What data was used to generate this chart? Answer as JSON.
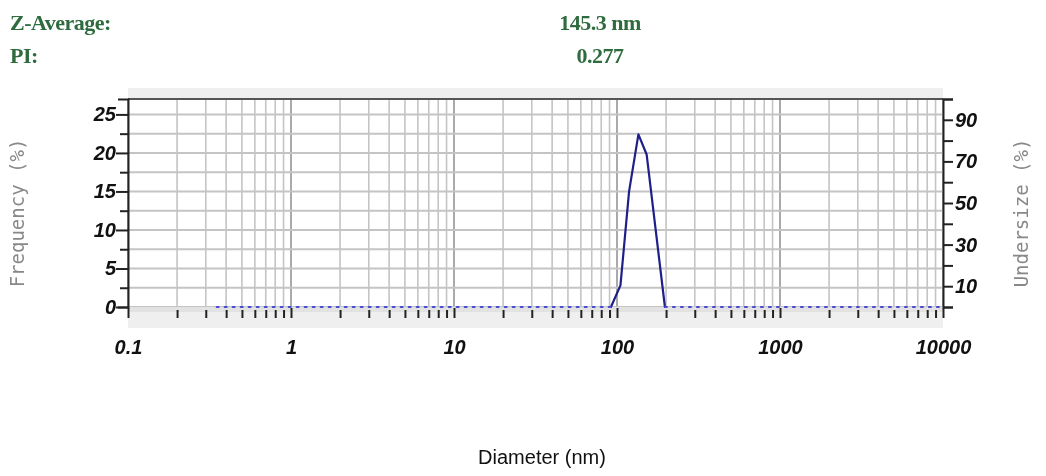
{
  "chart_data": {
    "type": "line",
    "xlabel": "Diameter (nm)",
    "ylabel": "Frequency (%)",
    "y2label": "Undersize (%)",
    "annotations": [
      "Z-Average:",
      "145.3 nm",
      "PI:",
      "0.277"
    ],
    "log": "x",
    "grid": true,
    "marker": "none",
    "xlim": [
      0.1,
      10000
    ],
    "xticks": [
      0.1,
      {
        "value": 0.2,
        "label": null
      },
      {
        "value": 0.3,
        "label": null
      },
      {
        "value": 0.4,
        "label": null
      },
      {
        "value": 0.5,
        "label": null
      },
      {
        "value": 0.6,
        "label": null
      },
      {
        "value": 0.7,
        "label": null
      },
      {
        "value": 0.8,
        "label": null
      },
      {
        "value": 0.9,
        "label": null
      },
      1,
      {
        "value": 2,
        "label": null
      },
      {
        "value": 3,
        "label": null
      },
      {
        "value": 4,
        "label": null
      },
      {
        "value": 5,
        "label": null
      },
      {
        "value": 6,
        "label": null
      },
      {
        "value": 7,
        "label": null
      },
      {
        "value": 8,
        "label": null
      },
      {
        "value": 9,
        "label": null
      },
      10,
      {
        "value": 20,
        "label": null
      },
      {
        "value": 30,
        "label": null
      },
      {
        "value": 40,
        "label": null
      },
      {
        "value": 50,
        "label": null
      },
      {
        "value": 60,
        "label": null
      },
      {
        "value": 70,
        "label": null
      },
      {
        "value": 80,
        "label": null
      },
      {
        "value": 90,
        "label": null
      },
      100,
      {
        "value": 200,
        "label": null
      },
      {
        "value": 300,
        "label": null
      },
      {
        "value": 400,
        "label": null
      },
      {
        "value": 500,
        "label": null
      },
      {
        "value": 600,
        "label": null
      },
      {
        "value": 700,
        "label": null
      },
      {
        "value": 800,
        "label": null
      },
      {
        "value": 900,
        "label": null
      },
      1000,
      {
        "value": 2000,
        "label": null
      },
      {
        "value": 3000,
        "label": null
      },
      {
        "value": 4000,
        "label": null
      },
      {
        "value": 5000,
        "label": null
      },
      {
        "value": 6000,
        "label": null
      },
      {
        "value": 7000,
        "label": null
      },
      {
        "value": 8000,
        "label": null
      },
      {
        "value": 9000,
        "label": null
      },
      10000
    ],
    "ylim": [
      0,
      27
    ],
    "yticks": [
      0,
      {
        "value": 2.5,
        "label": null
      },
      5,
      {
        "value": 7.5,
        "label": null
      },
      10,
      {
        "value": 12.5,
        "label": null
      },
      15,
      {
        "value": 17.5,
        "label": null
      },
      20,
      {
        "value": 22.5,
        "label": null
      },
      25
    ],
    "y2lim": [
      0,
      100
    ],
    "y2ticks": [
      {
        "value": 0,
        "label": null
      },
      10,
      {
        "value": 20,
        "label": null
      },
      30,
      {
        "value": 40,
        "label": null
      },
      50,
      {
        "value": 60,
        "label": null
      },
      70,
      {
        "value": 80,
        "label": null
      },
      90,
      {
        "value": 100,
        "label": null
      }
    ],
    "series": [
      {
        "color": "#1f1f8a",
        "line_style": "solid",
        "x": [
          91.8,
          105,
          118.6,
          135.3,
          152,
          196.8
        ],
        "values": [
          0,
          2.8,
          15.0,
          22.4,
          19.8,
          0
        ]
      },
      {
        "color": "#4a4ad0",
        "line_style": "dotted",
        "x": [
          0.35,
          91.8,
          145,
          196.8,
          10000
        ],
        "values": [
          0,
          0,
          null,
          0,
          0
        ]
      }
    ]
  }
}
